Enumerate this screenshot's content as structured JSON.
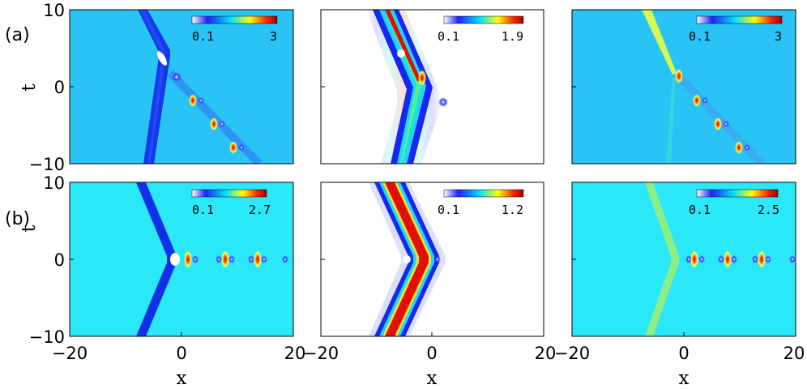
{
  "figure": {
    "rows": [
      {
        "label": "(a)",
        "panels": [
          {
            "type": "heatmap",
            "colorbar_min": "0.1",
            "colorbar_max": "3"
          },
          {
            "type": "heatmap",
            "colorbar_min": "0.1",
            "colorbar_max": "1.9"
          },
          {
            "type": "heatmap",
            "colorbar_min": "0.1",
            "colorbar_max": "3"
          }
        ]
      },
      {
        "label": "(b)",
        "panels": [
          {
            "type": "heatmap",
            "colorbar_min": "0.1",
            "colorbar_max": "2.7"
          },
          {
            "type": "heatmap",
            "colorbar_min": "0.1",
            "colorbar_max": "1.2"
          },
          {
            "type": "heatmap",
            "colorbar_min": "0.1",
            "colorbar_max": "2.5"
          }
        ]
      }
    ],
    "xlabel": "x",
    "ylabel": "t",
    "xlim": [
      -20,
      20
    ],
    "ylim": [
      -10,
      10
    ],
    "x_ticks": [
      "−20",
      "0",
      "20"
    ],
    "y_ticks": [
      "10",
      "0",
      "−10"
    ],
    "colormap": [
      "#ffffff",
      "#0000ff",
      "#00ffff",
      "#ffff00",
      "#ff0000",
      "#800000"
    ],
    "background_colors": {
      "cyan_bg": "#29c3f5",
      "light_cyan_bg": "#2ae8f8",
      "white_bg": "#ffffff",
      "stripe_blue": "#1030e0",
      "stripe_red": "#d00000"
    }
  }
}
